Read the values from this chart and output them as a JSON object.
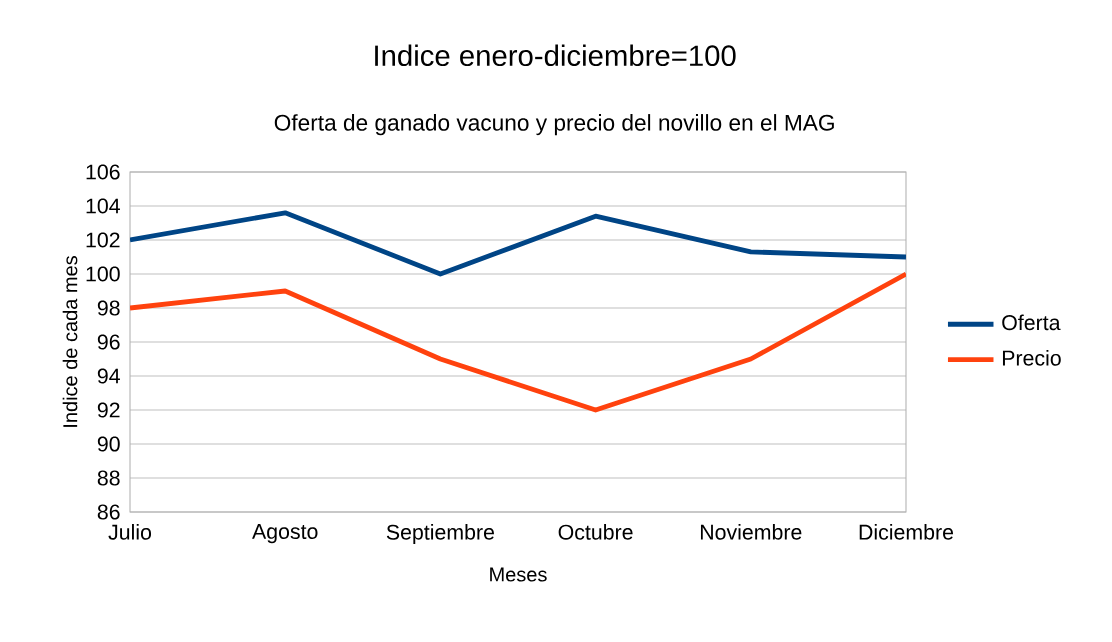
{
  "chart_data": {
    "type": "line",
    "title": "Indice enero-diciembre=100",
    "subtitle": "Oferta de ganado vacuno y precio del novillo en el MAG",
    "xlabel": "Meses",
    "ylabel": "Indice de cada mes",
    "categories": [
      "Julio",
      "Agosto",
      "Septiembre",
      "Octubre",
      "Noviembre",
      "Diciembre"
    ],
    "series": [
      {
        "name": "Oferta",
        "color": "#004586",
        "values": [
          102,
          103.6,
          100,
          103.4,
          101.3,
          101
        ]
      },
      {
        "name": "Precio",
        "color": "#ff420e",
        "values": [
          98,
          99,
          95,
          92,
          95,
          100
        ]
      }
    ],
    "ylim": [
      86,
      106
    ],
    "yticks": [
      86,
      88,
      90,
      92,
      94,
      96,
      98,
      100,
      102,
      104,
      106
    ],
    "grid": "y",
    "legend": "right",
    "line_style": "solid"
  }
}
